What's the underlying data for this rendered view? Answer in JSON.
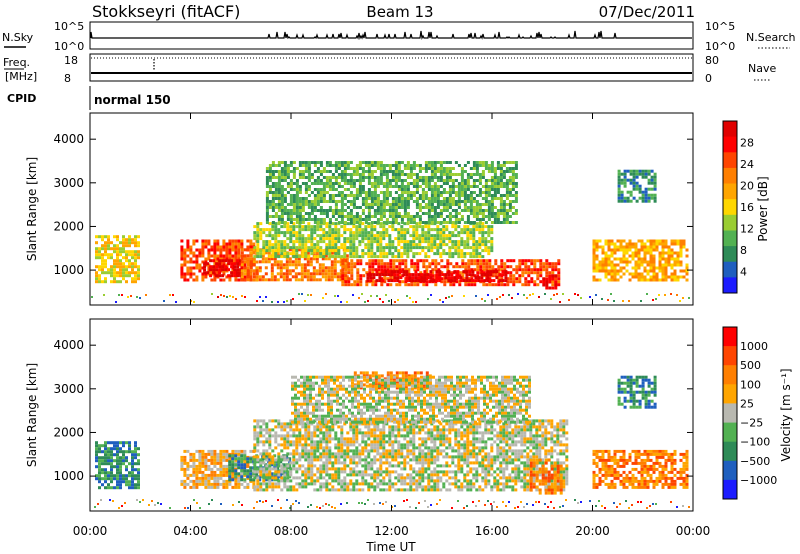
{
  "header": {
    "station": "Stokkseyri (fitACF)",
    "beam": "Beam 13",
    "date": "07/Dec/2011"
  },
  "status_panels": {
    "nsky_label": "N.Sky",
    "nsky_ticks": [
      "10^5",
      "10^0"
    ],
    "nsearch_label": "N.Search",
    "nsearch_ticks": [
      "10^5",
      "10^0"
    ],
    "freq_label": "Freq.",
    "freq_unit": "[MHz]",
    "freq_ticks": [
      "18",
      "8"
    ],
    "nave_label": "Nave",
    "nave_ticks": [
      "80",
      "0"
    ],
    "cpid_label": "CPID",
    "cpid_value": "normal 150"
  },
  "chart_data": [
    {
      "type": "heatmap",
      "name": "power",
      "ylabel": "Slant Range [km]",
      "xlabel": "",
      "ylim": [
        200,
        4600
      ],
      "xlim": [
        0,
        24
      ],
      "yticks": [
        "1000",
        "2000",
        "3000",
        "4000"
      ],
      "colorbar_label": "Power [dB]",
      "colorbar_ticks": [
        "28",
        "24",
        "20",
        "16",
        "12",
        "8",
        "4"
      ],
      "colors": [
        "#1c1cff",
        "#1f5fbf",
        "#2e8b57",
        "#52b152",
        "#9acd32",
        "#ffd700",
        "#ffa500",
        "#ff7f00",
        "#ff4500",
        "#ff0000",
        "#e00000"
      ],
      "bands": [
        {
          "t0": 0.2,
          "t1": 1.9,
          "r0": 700,
          "r1": 1800,
          "level": 5
        },
        {
          "t0": 3.6,
          "t1": 6.6,
          "r0": 750,
          "r1": 1700,
          "level": 8
        },
        {
          "t0": 4.5,
          "t1": 6.0,
          "r0": 900,
          "r1": 1250,
          "level": 10
        },
        {
          "t0": 6.0,
          "t1": 10.2,
          "r0": 800,
          "r1": 1500,
          "level": 7
        },
        {
          "t0": 6.5,
          "t1": 16.0,
          "r0": 1300,
          "r1": 2100,
          "level": 4
        },
        {
          "t0": 10.0,
          "t1": 18.6,
          "r0": 650,
          "r1": 1250,
          "level": 8
        },
        {
          "t0": 11.0,
          "t1": 16.5,
          "r0": 780,
          "r1": 1000,
          "level": 10
        },
        {
          "t0": 18.0,
          "t1": 18.5,
          "r0": 600,
          "r1": 900,
          "level": 10
        },
        {
          "t0": 20.0,
          "t1": 23.8,
          "r0": 750,
          "r1": 1700,
          "level": 6
        },
        {
          "t0": 7.0,
          "t1": 17.0,
          "r0": 2100,
          "r1": 3500,
          "level": 3
        },
        {
          "t0": 21.0,
          "t1": 22.5,
          "r0": 2600,
          "r1": 3300,
          "level": 2
        }
      ]
    },
    {
      "type": "heatmap",
      "name": "velocity",
      "ylabel": "Slant Range [km]",
      "xlabel": "Time UT",
      "ylim": [
        200,
        4600
      ],
      "xlim": [
        0,
        24
      ],
      "yticks": [
        "1000",
        "2000",
        "3000",
        "4000"
      ],
      "xticks": [
        "00:00",
        "04:00",
        "08:00",
        "12:00",
        "16:00",
        "20:00",
        "00:00"
      ],
      "colorbar_label": "Velocity [m s⁻¹]",
      "colorbar_ticks": [
        "1000",
        "500",
        "100",
        "25",
        "−25",
        "−100",
        "−500",
        "−1000"
      ],
      "colors": [
        "#1c1cff",
        "#1f5fbf",
        "#2e8b57",
        "#52b152",
        "#b8b8b0",
        "#ffa500",
        "#ff7f00",
        "#ff4500",
        "#ff0000"
      ],
      "bands": [
        {
          "t0": 0.2,
          "t1": 1.9,
          "r0": 700,
          "r1": 1800,
          "level": 2
        },
        {
          "t0": 3.6,
          "t1": 6.5,
          "r0": 750,
          "r1": 1600,
          "level": 5
        },
        {
          "t0": 5.5,
          "t1": 8.0,
          "r0": 900,
          "r1": 1500,
          "level": 2
        },
        {
          "t0": 6.5,
          "t1": 19.0,
          "r0": 700,
          "r1": 2300,
          "level": 4
        },
        {
          "t0": 10.5,
          "t1": 13.5,
          "r0": 3000,
          "r1": 3400,
          "level": 6
        },
        {
          "t0": 17.5,
          "t1": 18.8,
          "r0": 600,
          "r1": 1400,
          "level": 6
        },
        {
          "t0": 20.0,
          "t1": 23.8,
          "r0": 750,
          "r1": 1600,
          "level": 6
        },
        {
          "t0": 8.0,
          "t1": 17.5,
          "r0": 2200,
          "r1": 3300,
          "level": 4
        },
        {
          "t0": 21.0,
          "t1": 22.5,
          "r0": 2600,
          "r1": 3300,
          "level": 2
        }
      ]
    }
  ]
}
